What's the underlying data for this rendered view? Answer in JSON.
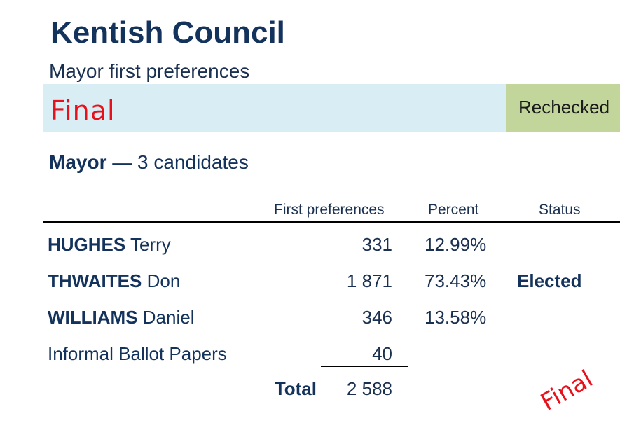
{
  "header": {
    "council_name": "Kentish Council",
    "subtitle": "Mayor first preferences"
  },
  "status": {
    "banner_text": "Final",
    "badge_text": "Rechecked",
    "banner_color": "#d9edf4",
    "badge_color": "#c2d69b",
    "final_color": "#e8101a"
  },
  "contest": {
    "office": "Mayor",
    "candidates_text": "— 3 candidates"
  },
  "table": {
    "columns": {
      "first_preferences": "First preferences",
      "percent": "Percent",
      "status": "Status"
    },
    "candidates": [
      {
        "surname": "HUGHES",
        "given_name": "Terry",
        "votes": "331",
        "percent": "12.99%",
        "status": ""
      },
      {
        "surname": "THWAITES",
        "given_name": "Don",
        "votes": "1 871",
        "percent": "73.43%",
        "status": "Elected"
      },
      {
        "surname": "WILLIAMS",
        "given_name": "Daniel",
        "votes": "346",
        "percent": "13.58%",
        "status": ""
      }
    ],
    "informal": {
      "label": "Informal Ballot Papers",
      "votes": "40"
    },
    "total": {
      "label": "Total",
      "votes": "2 588"
    }
  },
  "stamp": {
    "text": "Final"
  }
}
